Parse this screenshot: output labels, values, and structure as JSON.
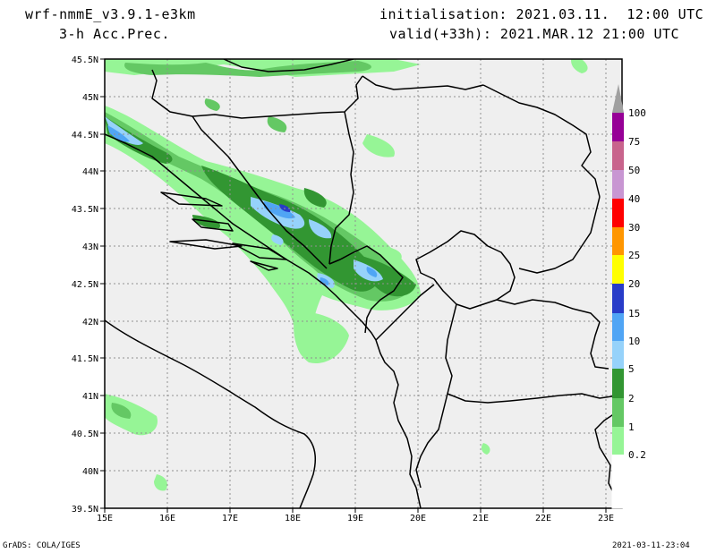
{
  "header": {
    "model": "wrf-nmmE_v3.9.1-e3km",
    "field": "3-h Acc.Prec.",
    "init": "initialisation: 2021.03.11.  12:00 UTC",
    "valid": "valid(+33h): 2021.MAR.12 21:00 UTC"
  },
  "footer": {
    "left": "GrADS: COLA/IGES",
    "right": "2021-03-11-23:04"
  },
  "map": {
    "lon_labels": [
      "15E",
      "16E",
      "17E",
      "18E",
      "19E",
      "20E",
      "21E",
      "22E",
      "23E"
    ],
    "lat_labels": [
      "45.5N",
      "45N",
      "44.5N",
      "44N",
      "43.5N",
      "43N",
      "42.5N",
      "42N",
      "41.5N",
      "41N",
      "40.5N",
      "40N",
      "39.5N"
    ]
  },
  "colorbar": {
    "levels": [
      "0.2",
      "1",
      "2",
      "5",
      "10",
      "15",
      "20",
      "25",
      "30",
      "40",
      "50",
      "75",
      "100"
    ],
    "colors": [
      "#ffffff",
      "#96f596",
      "#64c864",
      "#329632",
      "#96d2fa",
      "#50a5f5",
      "#283cc8",
      "#ffff00",
      "#ff9600",
      "#ff0000",
      "#c896d2",
      "#c8648c",
      "#960096",
      "#a0a0a0"
    ]
  }
}
